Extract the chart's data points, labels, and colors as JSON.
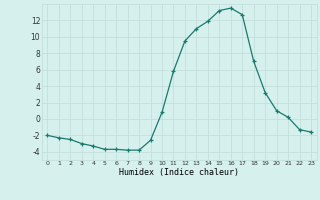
{
  "x": [
    0,
    1,
    2,
    3,
    4,
    5,
    6,
    7,
    8,
    9,
    10,
    11,
    12,
    13,
    14,
    15,
    16,
    17,
    18,
    19,
    20,
    21,
    22,
    23
  ],
  "y": [
    -2,
    -2.3,
    -2.5,
    -3,
    -3.3,
    -3.7,
    -3.7,
    -3.8,
    -3.8,
    -2.6,
    0.8,
    5.8,
    9.5,
    11.0,
    11.9,
    13.2,
    13.5,
    12.7,
    7.0,
    3.2,
    1.0,
    0.2,
    -1.3,
    -1.6
  ],
  "line_color": "#1a7a6e",
  "marker": "+",
  "markersize": 3,
  "linewidth": 0.9,
  "markeredgewidth": 0.9,
  "xlabel": "Humidex (Indice chaleur)",
  "xlabel_fontsize": 6.0,
  "xlim": [
    -0.5,
    23.5
  ],
  "ylim": [
    -5,
    14
  ],
  "yticks": [
    -4,
    -2,
    0,
    2,
    4,
    6,
    8,
    10,
    12
  ],
  "xticks": [
    0,
    1,
    2,
    3,
    4,
    5,
    6,
    7,
    8,
    9,
    10,
    11,
    12,
    13,
    14,
    15,
    16,
    17,
    18,
    19,
    20,
    21,
    22,
    23
  ],
  "xtick_fontsize": 4.5,
  "ytick_fontsize": 5.5,
  "bg_color": "#d6f0ee",
  "grid_color": "#c0ddd9",
  "grid_color_major": "#b8d4cf"
}
